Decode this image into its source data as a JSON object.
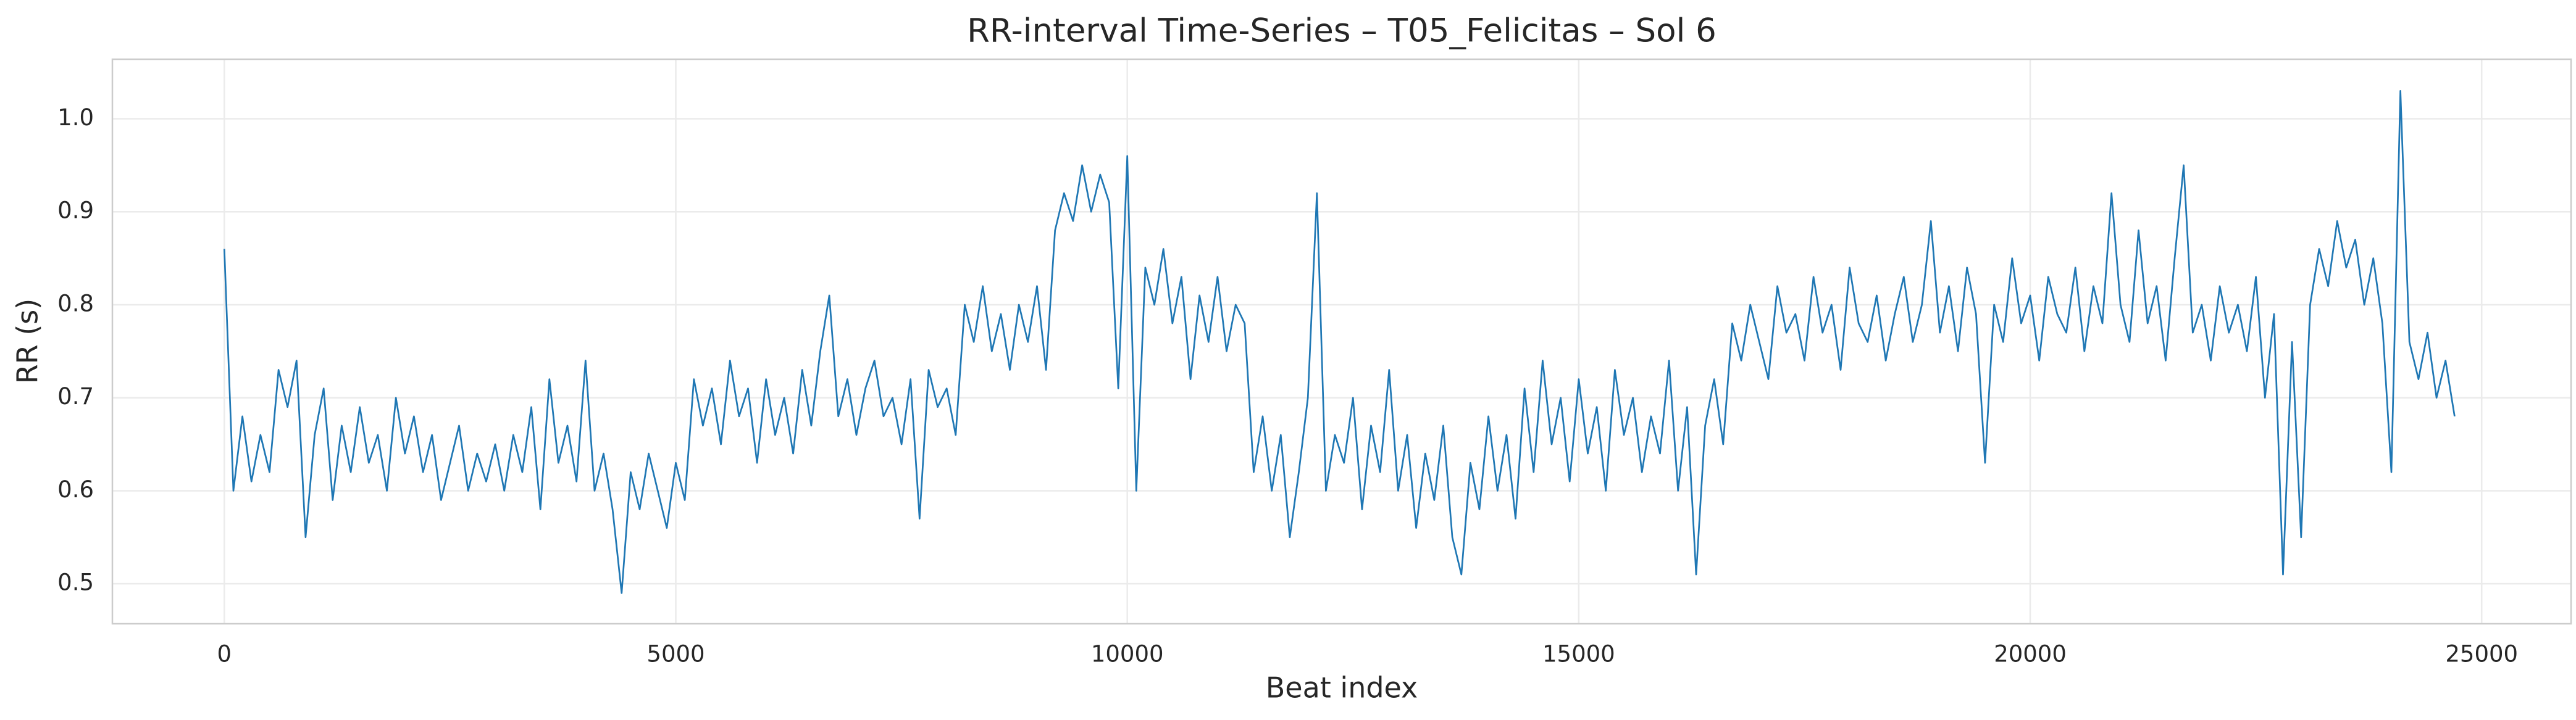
{
  "chart_data": {
    "type": "line",
    "title": "RR-interval Time-Series – T05_Felicitas – Sol 6",
    "x_label": "Beat index",
    "y_label": "RR (s)",
    "color": "#1f77b4",
    "grid": true,
    "xlim": [
      -1240,
      25990
    ],
    "ylim": [
      0.457,
      1.064
    ],
    "xticks": [
      0,
      5000,
      10000,
      15000,
      20000,
      25000
    ],
    "yticks": [
      0.5,
      0.6,
      0.7,
      0.8,
      0.9,
      {
        "value": 1,
        "label": "1.0"
      }
    ],
    "x": [
      0,
      100,
      200,
      300,
      400,
      500,
      600,
      700,
      800,
      900,
      1000,
      1100,
      1200,
      1300,
      1400,
      1500,
      1600,
      1700,
      1800,
      1900,
      2000,
      2100,
      2200,
      2300,
      2400,
      2500,
      2600,
      2700,
      2800,
      2900,
      3000,
      3100,
      3200,
      3300,
      3400,
      3500,
      3600,
      3700,
      3800,
      3900,
      4000,
      4100,
      4200,
      4300,
      4400,
      4500,
      4600,
      4700,
      4800,
      4900,
      5000,
      5100,
      5200,
      5300,
      5400,
      5500,
      5600,
      5700,
      5800,
      5900,
      6000,
      6100,
      6200,
      6300,
      6400,
      6500,
      6600,
      6700,
      6800,
      6900,
      7000,
      7100,
      7200,
      7300,
      7400,
      7500,
      7600,
      7700,
      7800,
      7900,
      8000,
      8100,
      8200,
      8300,
      8400,
      8500,
      8600,
      8700,
      8800,
      8900,
      9000,
      9100,
      9200,
      9300,
      9400,
      9500,
      9600,
      9700,
      9800,
      9900,
      10000,
      10100,
      10200,
      10300,
      10400,
      10500,
      10600,
      10700,
      10800,
      10900,
      11000,
      11100,
      11200,
      11300,
      11400,
      11500,
      11600,
      11700,
      11800,
      11900,
      12000,
      12100,
      12200,
      12300,
      12400,
      12500,
      12600,
      12700,
      12800,
      12900,
      13000,
      13100,
      13200,
      13300,
      13400,
      13500,
      13600,
      13700,
      13800,
      13900,
      14000,
      14100,
      14200,
      14300,
      14400,
      14500,
      14600,
      14700,
      14800,
      14900,
      15000,
      15100,
      15200,
      15300,
      15400,
      15500,
      15600,
      15700,
      15800,
      15900,
      16000,
      16100,
      16200,
      16300,
      16400,
      16500,
      16600,
      16700,
      16800,
      16900,
      17000,
      17100,
      17200,
      17300,
      17400,
      17500,
      17600,
      17700,
      17800,
      17900,
      18000,
      18100,
      18200,
      18300,
      18400,
      18500,
      18600,
      18700,
      18800,
      18900,
      19000,
      19100,
      19200,
      19300,
      19400,
      19500,
      19600,
      19700,
      19800,
      19900,
      20000,
      20100,
      20200,
      20300,
      20400,
      20500,
      20600,
      20700,
      20800,
      20900,
      21000,
      21100,
      21200,
      21300,
      21400,
      21500,
      21600,
      21700,
      21800,
      21900,
      22000,
      22100,
      22200,
      22300,
      22400,
      22500,
      22600,
      22700,
      22800,
      22900,
      23000,
      23100,
      23200,
      23300,
      23400,
      23500,
      23600,
      23700,
      23800,
      23900,
      24000,
      24100,
      24200,
      24300,
      24400,
      24500,
      24600,
      24700
    ],
    "values": [
      0.86,
      0.6,
      0.68,
      0.61,
      0.66,
      0.62,
      0.73,
      0.69,
      0.74,
      0.55,
      0.66,
      0.71,
      0.59,
      0.67,
      0.62,
      0.69,
      0.63,
      0.66,
      0.6,
      0.7,
      0.64,
      0.68,
      0.62,
      0.66,
      0.59,
      0.63,
      0.67,
      0.6,
      0.64,
      0.61,
      0.65,
      0.6,
      0.66,
      0.62,
      0.69,
      0.58,
      0.72,
      0.63,
      0.67,
      0.61,
      0.74,
      0.6,
      0.64,
      0.58,
      0.49,
      0.62,
      0.58,
      0.64,
      0.6,
      0.56,
      0.63,
      0.59,
      0.72,
      0.67,
      0.71,
      0.65,
      0.74,
      0.68,
      0.71,
      0.63,
      0.72,
      0.66,
      0.7,
      0.64,
      0.73,
      0.67,
      0.75,
      0.81,
      0.68,
      0.72,
      0.66,
      0.71,
      0.74,
      0.68,
      0.7,
      0.65,
      0.72,
      0.57,
      0.73,
      0.69,
      0.71,
      0.66,
      0.8,
      0.76,
      0.82,
      0.75,
      0.79,
      0.73,
      0.8,
      0.76,
      0.82,
      0.73,
      0.88,
      0.92,
      0.89,
      0.95,
      0.9,
      0.94,
      0.91,
      0.71,
      0.96,
      0.6,
      0.84,
      0.8,
      0.86,
      0.78,
      0.83,
      0.72,
      0.81,
      0.76,
      0.83,
      0.75,
      0.8,
      0.78,
      0.62,
      0.68,
      0.6,
      0.66,
      0.55,
      0.62,
      0.7,
      0.92,
      0.6,
      0.66,
      0.63,
      0.7,
      0.58,
      0.67,
      0.62,
      0.73,
      0.6,
      0.66,
      0.56,
      0.64,
      0.59,
      0.67,
      0.55,
      0.51,
      0.63,
      0.58,
      0.68,
      0.6,
      0.66,
      0.57,
      0.71,
      0.62,
      0.74,
      0.65,
      0.7,
      0.61,
      0.72,
      0.64,
      0.69,
      0.6,
      0.73,
      0.66,
      0.7,
      0.62,
      0.68,
      0.64,
      0.74,
      0.6,
      0.69,
      0.51,
      0.67,
      0.72,
      0.65,
      0.78,
      0.74,
      0.8,
      0.76,
      0.72,
      0.82,
      0.77,
      0.79,
      0.74,
      0.83,
      0.77,
      0.8,
      0.73,
      0.84,
      0.78,
      0.76,
      0.81,
      0.74,
      0.79,
      0.83,
      0.76,
      0.8,
      0.89,
      0.77,
      0.82,
      0.75,
      0.84,
      0.79,
      0.63,
      0.8,
      0.76,
      0.85,
      0.78,
      0.81,
      0.74,
      0.83,
      0.79,
      0.77,
      0.84,
      0.75,
      0.82,
      0.78,
      0.92,
      0.8,
      0.76,
      0.88,
      0.78,
      0.82,
      0.74,
      0.85,
      0.95,
      0.77,
      0.8,
      0.74,
      0.82,
      0.77,
      0.8,
      0.75,
      0.83,
      0.7,
      0.79,
      0.51,
      0.76,
      0.55,
      0.8,
      0.86,
      0.82,
      0.89,
      0.84,
      0.87,
      0.8,
      0.85,
      0.78,
      0.62,
      1.03,
      0.76,
      0.72,
      0.77,
      0.7,
      0.74,
      0.68
    ]
  }
}
